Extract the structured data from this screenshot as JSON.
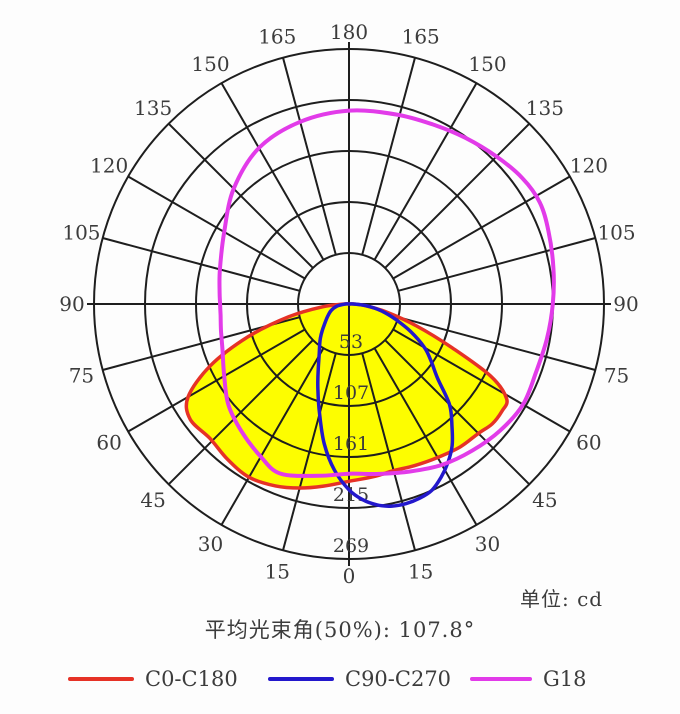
{
  "chart_data": {
    "type": "polar",
    "unit_label": "单位: cd",
    "caption": "平均光束角(50%): 107.8°",
    "angle_ticks": [
      0,
      15,
      30,
      45,
      60,
      75,
      90,
      105,
      120,
      135,
      150,
      165,
      180
    ],
    "ring_values": [
      53,
      107,
      161,
      215,
      269
    ],
    "max_value": 269,
    "grid_color": "#1e1e1e",
    "label_color": "#3c3c3c",
    "fill_color": "#fdfd00",
    "series": [
      {
        "name": "C0-C180",
        "color": "#e63226",
        "fill": "#fdfd00",
        "closed": false,
        "points": [
          [
            -90,
            5
          ],
          [
            -84,
            28
          ],
          [
            -78,
            65
          ],
          [
            -72,
            112
          ],
          [
            -66,
            160
          ],
          [
            -60,
            196
          ],
          [
            -54,
            207
          ],
          [
            -46,
            204
          ],
          [
            -38,
            208
          ],
          [
            -30,
            211
          ],
          [
            -22,
            207
          ],
          [
            -15,
            201
          ],
          [
            -8,
            194
          ],
          [
            0,
            187
          ],
          [
            8,
            184
          ],
          [
            15,
            182
          ],
          [
            22,
            184
          ],
          [
            30,
            187
          ],
          [
            38,
            191
          ],
          [
            45,
            193
          ],
          [
            50,
            197
          ],
          [
            55,
            197
          ],
          [
            59,
            194
          ],
          [
            63,
            168
          ],
          [
            67,
            118
          ],
          [
            72,
            75
          ],
          [
            78,
            40
          ],
          [
            84,
            18
          ],
          [
            90,
            5
          ]
        ]
      },
      {
        "name": "C90-C270",
        "color": "#2318cc",
        "fill": null,
        "closed": false,
        "points": [
          [
            -90,
            4
          ],
          [
            -80,
            13
          ],
          [
            -70,
            20
          ],
          [
            -60,
            26
          ],
          [
            -50,
            34
          ],
          [
            -45,
            40
          ],
          [
            -40,
            47
          ],
          [
            -35,
            54
          ],
          [
            -30,
            63
          ],
          [
            -25,
            77
          ],
          [
            -20,
            96
          ],
          [
            -15,
            120
          ],
          [
            -10,
            150
          ],
          [
            -5,
            176
          ],
          [
            0,
            196
          ],
          [
            4,
            207
          ],
          [
            8,
            214
          ],
          [
            12,
            218
          ],
          [
            16,
            219
          ],
          [
            20,
            218
          ],
          [
            24,
            215
          ],
          [
            28,
            207
          ],
          [
            32,
            197
          ],
          [
            36,
            185
          ],
          [
            40,
            169
          ],
          [
            45,
            150
          ],
          [
            50,
            122
          ],
          [
            55,
            106
          ],
          [
            60,
            92
          ],
          [
            66,
            71
          ],
          [
            72,
            51
          ],
          [
            78,
            35
          ],
          [
            84,
            19
          ],
          [
            90,
            5
          ]
        ]
      },
      {
        "name": "G18",
        "color": "#e23be9",
        "fill": null,
        "closed": true,
        "points": [
          [
            -180,
            204
          ],
          [
            -165,
            199
          ],
          [
            -150,
            190
          ],
          [
            -135,
            172
          ],
          [
            -120,
            152
          ],
          [
            -105,
            141
          ],
          [
            -95,
            137
          ],
          [
            -90,
            136
          ],
          [
            -85,
            136
          ],
          [
            -78,
            138
          ],
          [
            -70,
            142
          ],
          [
            -60,
            152
          ],
          [
            -50,
            166
          ],
          [
            -40,
            176
          ],
          [
            -30,
            186
          ],
          [
            -22,
            193
          ],
          [
            -10,
            184
          ],
          [
            0,
            179
          ],
          [
            10,
            182
          ],
          [
            20,
            188
          ],
          [
            30,
            196
          ],
          [
            40,
            202
          ],
          [
            50,
            208
          ],
          [
            60,
            212
          ],
          [
            70,
            210
          ],
          [
            80,
            212
          ],
          [
            90,
            215
          ],
          [
            100,
            219
          ],
          [
            110,
            224
          ],
          [
            118,
            228
          ],
          [
            126,
            226
          ],
          [
            135,
            220
          ],
          [
            145,
            214
          ],
          [
            155,
            209
          ],
          [
            166,
            206
          ]
        ]
      }
    ]
  }
}
